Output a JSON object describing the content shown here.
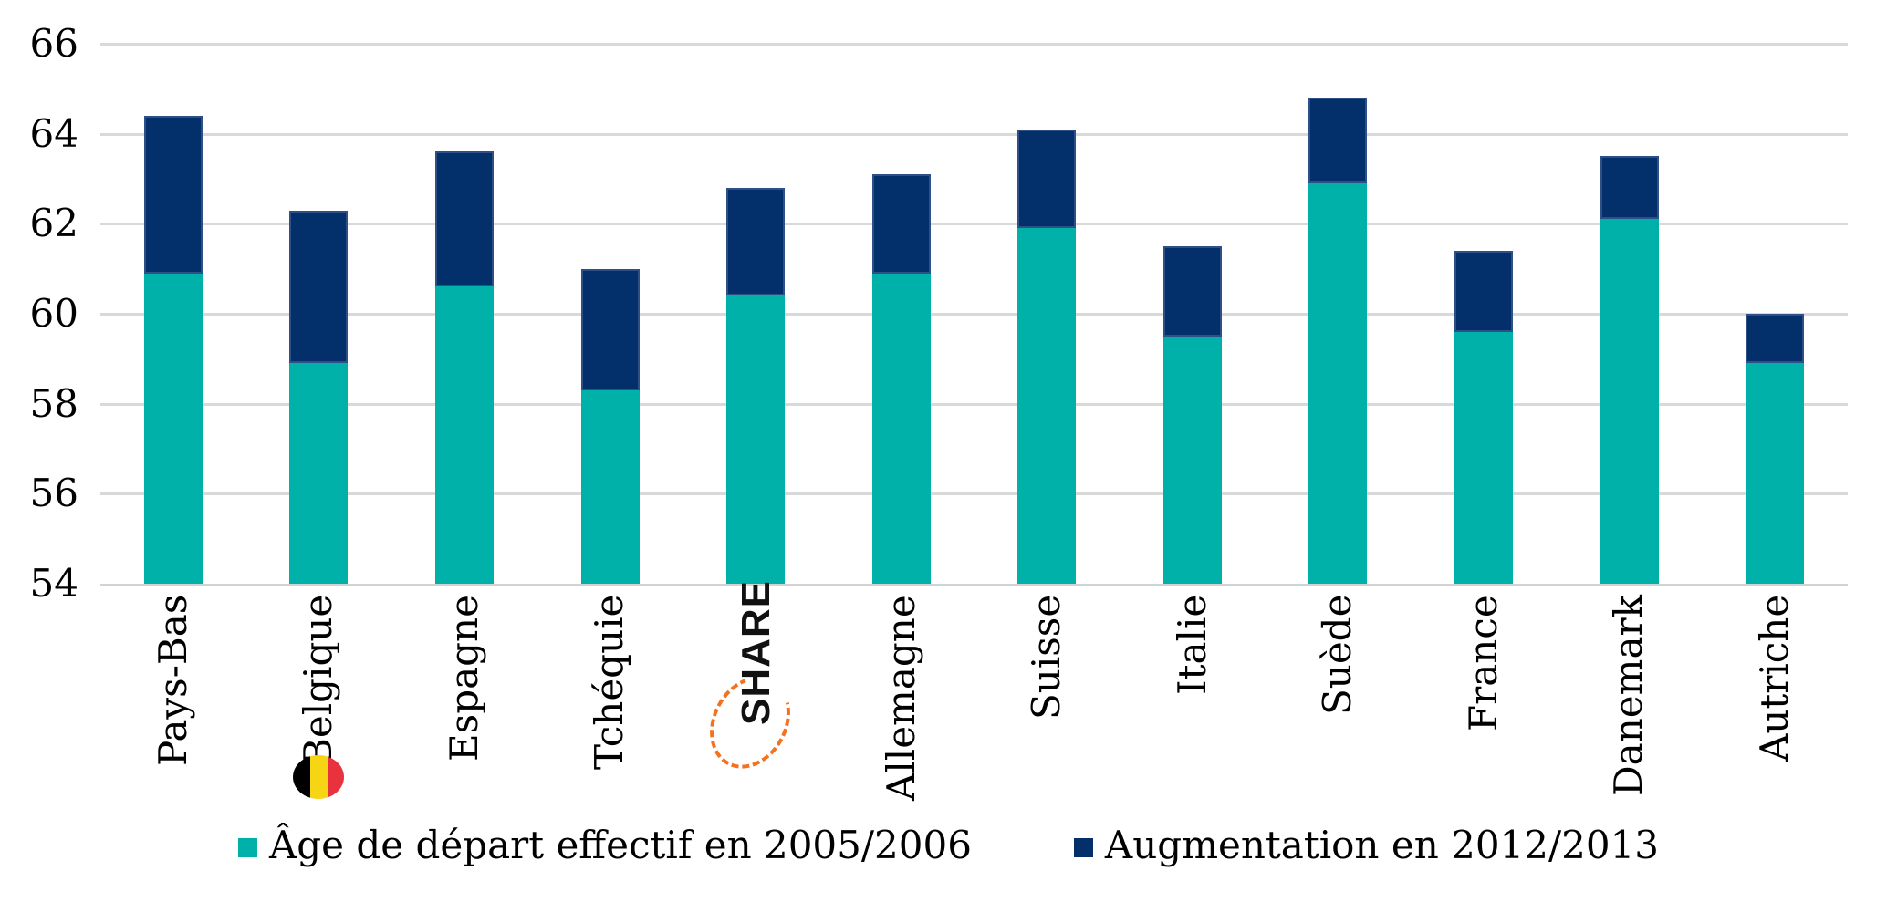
{
  "chart_data": {
    "type": "bar",
    "stacked": true,
    "orientation": "vertical",
    "categories": [
      "Pays-Bas",
      "Belgique",
      "Espagne",
      "Tchéquie",
      "",
      "Allemagne",
      "Suisse",
      "Italie",
      "Suède",
      "France",
      "Danemark",
      "Autriche"
    ],
    "series": [
      {
        "name": "Âge de départ effectif en 2005/2006",
        "color": "#00b1a9",
        "values": [
          60.9,
          58.9,
          60.6,
          58.3,
          60.4,
          60.9,
          61.9,
          59.5,
          62.9,
          59.6,
          62.1,
          58.9
        ]
      },
      {
        "name": "Augmentation en 2012/2013",
        "color": "#03306b",
        "values": [
          3.5,
          3.4,
          3.0,
          2.7,
          2.4,
          2.2,
          2.2,
          2.0,
          1.9,
          1.8,
          1.4,
          1.1
        ]
      }
    ],
    "stack_totals": [
      64.4,
      62.3,
      63.6,
      61.0,
      62.8,
      63.1,
      64.1,
      61.5,
      64.8,
      61.4,
      63.5,
      60.0
    ],
    "ylim": [
      54,
      66
    ],
    "yticks": [
      66,
      64,
      62,
      60,
      58,
      56,
      54
    ],
    "grid": true,
    "gridline_color": "#d9d9d9",
    "legend_position": "bottom",
    "xlabel": "",
    "ylabel": "",
    "title": ""
  },
  "legend": {
    "items": [
      {
        "label": "Âge de départ effectif en 2005/2006",
        "color": "#00b1a9"
      },
      {
        "label": "Augmentation en 2012/2013",
        "color": "#03306b"
      }
    ]
  },
  "annotations": {
    "share_logo": {
      "text": "SHARE",
      "category_index": 4,
      "accent_color": "#f4711f"
    },
    "belgium_flag": {
      "category_index": 1,
      "stripe_colors": [
        "#000000",
        "#f6d515",
        "#e8333f"
      ]
    }
  },
  "colors": {
    "teal": "#00b1a9",
    "navy": "#03306b",
    "navy_border": "#2f5087",
    "grid": "#d9d9d9",
    "orange": "#f4711f",
    "text": "#000000",
    "background": "#ffffff"
  }
}
